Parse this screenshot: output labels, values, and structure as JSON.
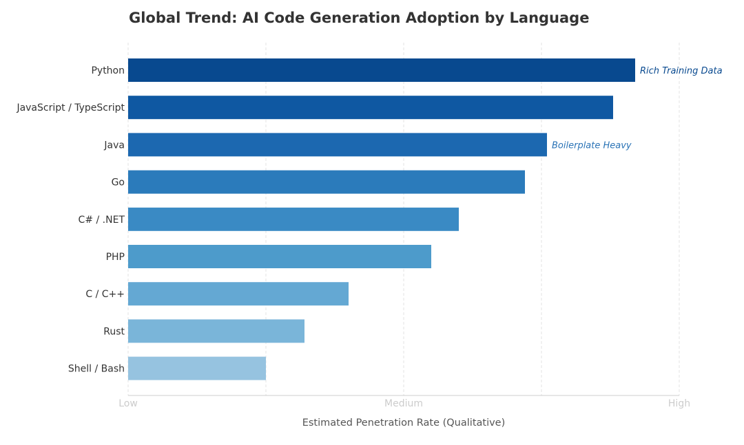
{
  "chart_data": {
    "type": "bar",
    "orientation": "horizontal",
    "title": "Global Trend: AI Code Generation Adoption by Language",
    "xlabel": "Estimated Penetration Rate (Qualitative)",
    "ylabel": "",
    "xlim": [
      0,
      100
    ],
    "x_ticks": [
      {
        "value": 0,
        "label": "Low"
      },
      {
        "value": 50,
        "label": "Medium"
      },
      {
        "value": 100,
        "label": "High"
      }
    ],
    "grid_values": [
      0,
      25,
      50,
      75,
      100
    ],
    "grid": true,
    "categories": [
      "Python",
      "JavaScript / TypeScript",
      "Java",
      "Go",
      "C# / .NET",
      "PHP",
      "C / C++",
      "Rust",
      "Shell / Bash"
    ],
    "values": [
      92,
      88,
      76,
      72,
      60,
      55,
      40,
      32,
      25
    ],
    "colors": [
      "#08498f",
      "#0f58a2",
      "#1c68b0",
      "#2b7bbb",
      "#3a8ac4",
      "#4d9bcb",
      "#64a8d3",
      "#7ab5d9",
      "#96c3e0"
    ],
    "annotations": [
      {
        "category": "Python",
        "text": "Rich Training Data",
        "color": "#08498f"
      },
      {
        "category": "Java",
        "text": "Boilerplate Heavy",
        "color": "#2a73b6"
      }
    ],
    "axis_color": "#cccccc",
    "grid_color": "#e3e3e3"
  }
}
